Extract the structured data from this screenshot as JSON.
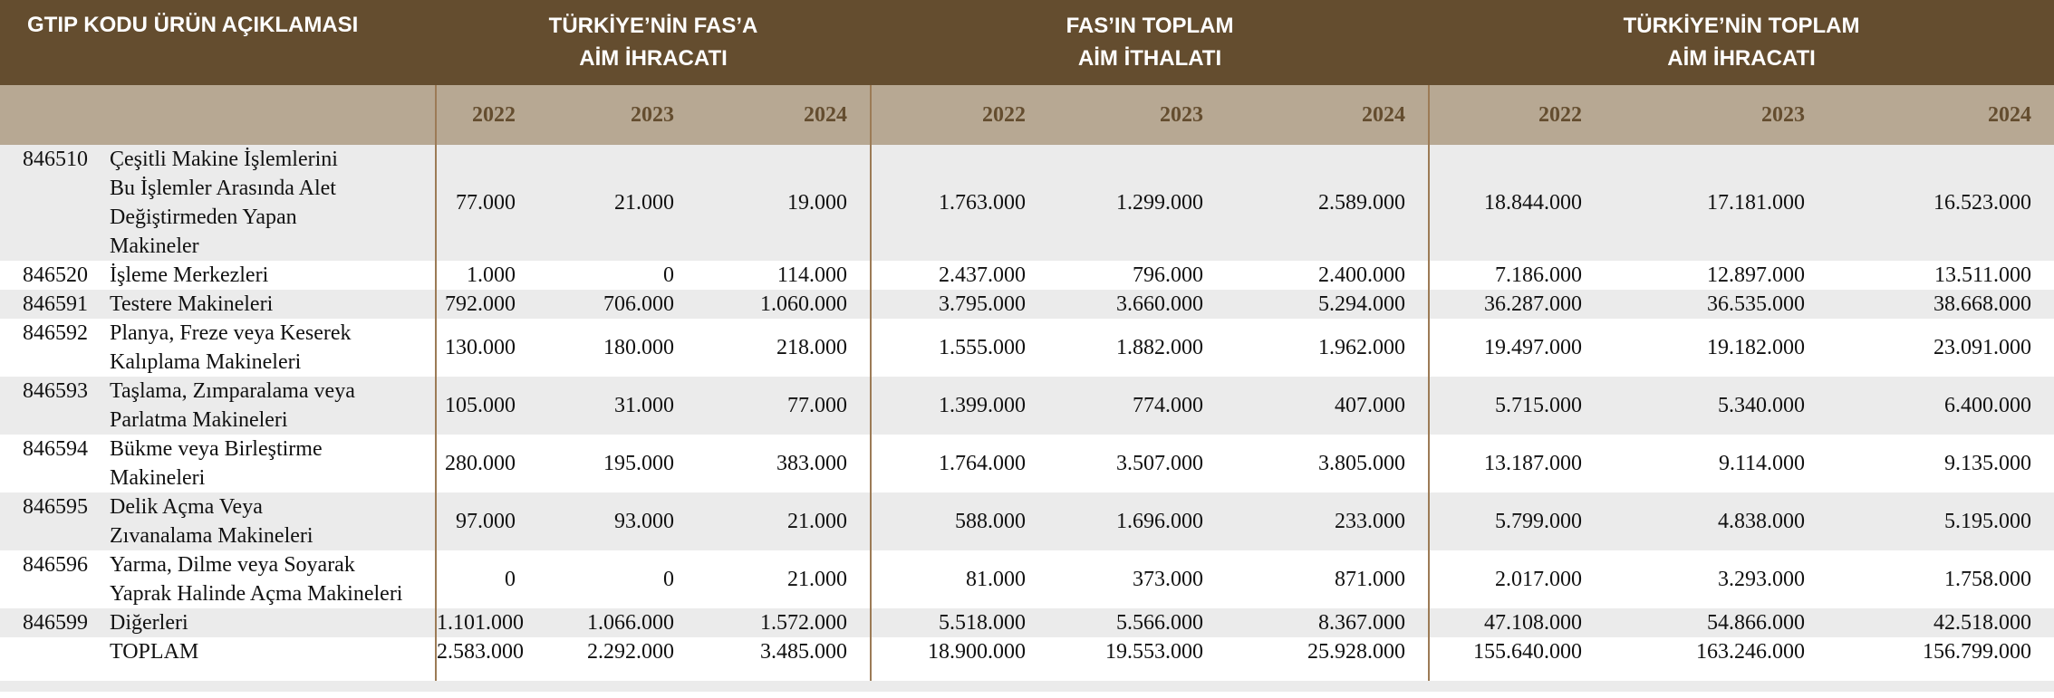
{
  "header": {
    "col1": "GTIP KODU ÜRÜN AÇIKLAMASI",
    "groups": [
      {
        "line1": "TÜRKİYE’NİN FAS’A",
        "line2": "AİM İHRACATI"
      },
      {
        "line1": "FAS’IN  TOPLAM",
        "line2": "AİM İTHALATI"
      },
      {
        "line1": "TÜRKİYE’NİN TOPLAM",
        "line2": "AİM İHRACATI"
      }
    ]
  },
  "years": [
    "2022",
    "2023",
    "2024",
    "2022",
    "2023",
    "2024",
    "2022",
    "2023",
    "2024"
  ],
  "rows": [
    {
      "code": "846510",
      "desc": [
        "Çeşitli Makine İşlemlerini",
        "Bu İşlemler Arasında Alet",
        "Değiştirmeden Yapan",
        "Makineler"
      ],
      "values": [
        "77.000",
        "21.000",
        "19.000",
        "1.763.000",
        "1.299.000",
        "2.589.000",
        "18.844.000",
        "17.181.000",
        "16.523.000"
      ]
    },
    {
      "code": "846520",
      "desc": [
        "İşleme Merkezleri"
      ],
      "values": [
        "1.000",
        "0",
        "114.000",
        "2.437.000",
        "796.000",
        "2.400.000",
        "7.186.000",
        "12.897.000",
        "13.511.000"
      ]
    },
    {
      "code": "846591",
      "desc": [
        "Testere Makineleri"
      ],
      "values": [
        "792.000",
        "706.000",
        "1.060.000",
        "3.795.000",
        "3.660.000",
        "5.294.000",
        "36.287.000",
        "36.535.000",
        "38.668.000"
      ]
    },
    {
      "code": "846592",
      "desc": [
        "Planya, Freze veya Keserek",
        "Kalıplama Makineleri"
      ],
      "values": [
        "130.000",
        "180.000",
        "218.000",
        "1.555.000",
        "1.882.000",
        "1.962.000",
        "19.497.000",
        "19.182.000",
        "23.091.000"
      ]
    },
    {
      "code": "846593",
      "desc": [
        "Taşlama, Zımparalama veya",
        "Parlatma Makineleri"
      ],
      "values": [
        "105.000",
        "31.000",
        "77.000",
        "1.399.000",
        "774.000",
        "407.000",
        "5.715.000",
        "5.340.000",
        "6.400.000"
      ]
    },
    {
      "code": "846594",
      "desc": [
        "Bükme veya Birleştirme",
        "Makineleri"
      ],
      "values": [
        "280.000",
        "195.000",
        "383.000",
        "1.764.000",
        "3.507.000",
        "3.805.000",
        "13.187.000",
        "9.114.000",
        "9.135.000"
      ]
    },
    {
      "code": "846595",
      "desc": [
        "Delik Açma Veya",
        "Zıvanalama Makineleri"
      ],
      "values": [
        "97.000",
        "93.000",
        "21.000",
        "588.000",
        "1.696.000",
        "233.000",
        "5.799.000",
        "4.838.000",
        "5.195.000"
      ]
    },
    {
      "code": "846596",
      "desc": [
        "Yarma, Dilme veya Soyarak",
        "Yaprak Halinde Açma Makineleri"
      ],
      "values": [
        "0",
        "0",
        "21.000",
        "81.000",
        "373.000",
        "871.000",
        "2.017.000",
        "3.293.000",
        "1.758.000"
      ]
    },
    {
      "code": "846599",
      "desc": [
        "Diğerleri"
      ],
      "values": [
        "1.101.000",
        "1.066.000",
        "1.572.000",
        "5.518.000",
        "5.566.000",
        "8.367.000",
        "47.108.000",
        "54.866.000",
        "42.518.000"
      ]
    }
  ],
  "total": {
    "code": "",
    "desc": "TOPLAM",
    "values": [
      "2.583.000",
      "2.292.000",
      "3.485.000",
      "18.900.000",
      "19.553.000",
      "25.928.000",
      "155.640.000",
      "163.246.000",
      "156.799.000"
    ]
  }
}
